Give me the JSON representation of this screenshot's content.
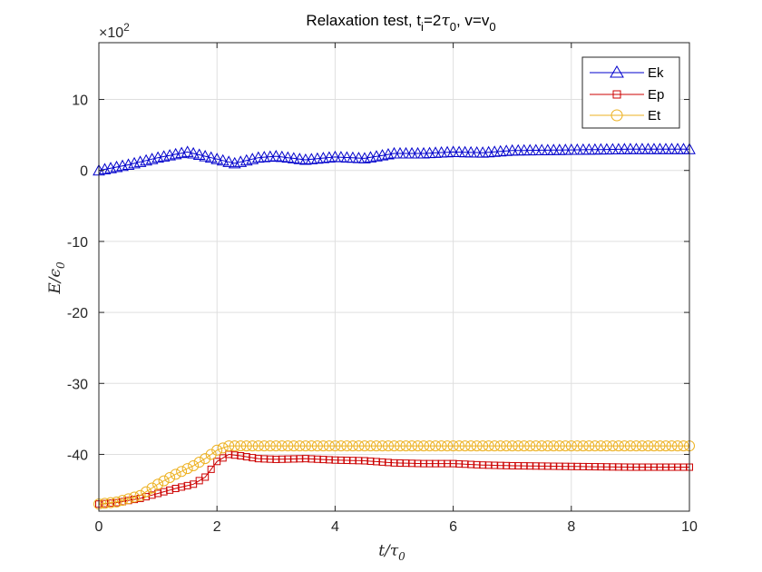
{
  "chart_data": {
    "type": "line",
    "title": "Relaxation test, t",
    "title_sub_i": "i",
    "title_mid": "=2",
    "title_tau": "τ",
    "title_sub_0a": "0",
    "title_end": ", v=v",
    "title_sub_0b": "0",
    "xlabel_main": "t/τ",
    "xlabel_sub": "0",
    "ylabel_main": "E/ϵ",
    "ylabel_sub": "0",
    "exponent_label": "×10",
    "exponent_power": "2",
    "xlim": [
      0,
      10
    ],
    "ylim": [
      -48,
      18
    ],
    "xticks": [
      0,
      2,
      4,
      6,
      8,
      10
    ],
    "yticks": [
      -40,
      -30,
      -20,
      -10,
      0,
      10
    ],
    "legend_position": "top-right",
    "series": [
      {
        "name": "Ek",
        "color": "#0000cc",
        "marker": "triangle",
        "x": [
          0,
          0.5,
          1.0,
          1.5,
          2.0,
          2.3,
          2.7,
          3.0,
          3.5,
          4.0,
          4.5,
          5.0,
          5.5,
          6.0,
          6.5,
          7.0,
          8.0,
          9.0,
          10.0
        ],
        "y": [
          0,
          0.8,
          1.8,
          2.6,
          1.6,
          1.0,
          1.8,
          2.0,
          1.5,
          1.9,
          1.7,
          2.4,
          2.4,
          2.6,
          2.5,
          2.8,
          2.9,
          3.0,
          3.0
        ]
      },
      {
        "name": "Ep",
        "color": "#cc0000",
        "marker": "square",
        "x": [
          0,
          0.3,
          0.7,
          1.0,
          1.3,
          1.6,
          1.8,
          2.0,
          2.2,
          2.4,
          2.7,
          3.0,
          3.5,
          4.0,
          4.5,
          5.0,
          5.5,
          6.0,
          6.5,
          7.0,
          8.0,
          9.0,
          10.0
        ],
        "y": [
          -47,
          -46.8,
          -46.2,
          -45.5,
          -44.8,
          -44.2,
          -43.2,
          -41.0,
          -40.0,
          -40.2,
          -40.6,
          -40.7,
          -40.6,
          -40.8,
          -40.9,
          -41.2,
          -41.3,
          -41.3,
          -41.5,
          -41.6,
          -41.7,
          -41.8,
          -41.8
        ]
      },
      {
        "name": "Et",
        "color": "#edb120",
        "marker": "circle",
        "x": [
          0,
          0.3,
          0.7,
          1.0,
          1.3,
          1.6,
          1.8,
          2.0,
          2.2,
          3.0,
          4.0,
          5.0,
          6.0,
          7.0,
          8.0,
          9.0,
          10.0
        ],
        "y": [
          -47,
          -46.7,
          -45.8,
          -44.2,
          -42.8,
          -41.6,
          -40.6,
          -39.4,
          -38.8,
          -38.8,
          -38.8,
          -38.8,
          -38.8,
          -38.8,
          -38.8,
          -38.8,
          -38.8
        ]
      }
    ]
  }
}
